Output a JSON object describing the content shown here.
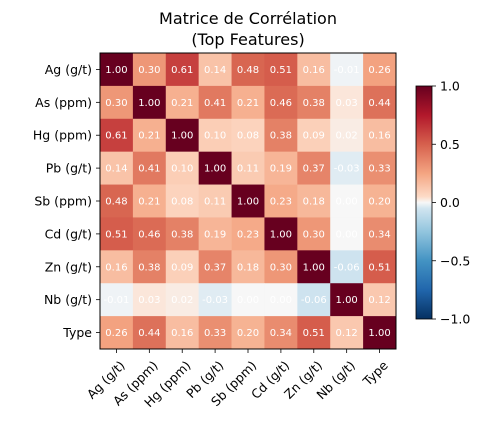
{
  "chart_data": {
    "type": "heatmap",
    "title": "Matrice de Corrélation",
    "subtitle": "(Top Features)",
    "labels": [
      "Ag (g/t)",
      "As (ppm)",
      "Hg (ppm)",
      "Pb (g/t)",
      "Sb (ppm)",
      "Cd (g/t)",
      "Zn (g/t)",
      "Nb (g/t)",
      "Type"
    ],
    "matrix": [
      [
        1.0,
        0.3,
        0.61,
        0.14,
        0.48,
        0.51,
        0.16,
        -0.01,
        0.26
      ],
      [
        0.3,
        1.0,
        0.21,
        0.41,
        0.21,
        0.46,
        0.38,
        0.03,
        0.44
      ],
      [
        0.61,
        0.21,
        1.0,
        0.1,
        0.08,
        0.38,
        0.09,
        0.02,
        0.16
      ],
      [
        0.14,
        0.41,
        0.1,
        1.0,
        0.11,
        0.19,
        0.37,
        -0.03,
        0.33
      ],
      [
        0.48,
        0.21,
        0.08,
        0.11,
        1.0,
        0.23,
        0.18,
        0.0,
        0.2
      ],
      [
        0.51,
        0.46,
        0.38,
        0.19,
        0.23,
        1.0,
        0.3,
        0.0,
        0.34
      ],
      [
        0.16,
        0.38,
        0.09,
        0.37,
        0.18,
        0.3,
        1.0,
        -0.06,
        0.51
      ],
      [
        -0.01,
        0.03,
        0.02,
        -0.03,
        0.0,
        0.0,
        -0.06,
        1.0,
        0.12
      ],
      [
        0.26,
        0.44,
        0.16,
        0.33,
        0.2,
        0.34,
        0.51,
        0.12,
        1.0
      ]
    ],
    "value_format": "2 decimals",
    "colormap": "RdBu_r",
    "vmin": -1.0,
    "vmax": 1.0,
    "colorbar_ticks": [
      1.0,
      0.5,
      0.0,
      -0.5,
      -1.0
    ],
    "colorbar_tick_labels": [
      "1.0",
      "0.5",
      "0.0",
      "−0.5",
      "−1.0"
    ],
    "grid": false,
    "colors": {
      "low": "#053061",
      "mid": "#f7f7f7",
      "high": "#67001f",
      "cell_text": "#ffffff"
    }
  }
}
